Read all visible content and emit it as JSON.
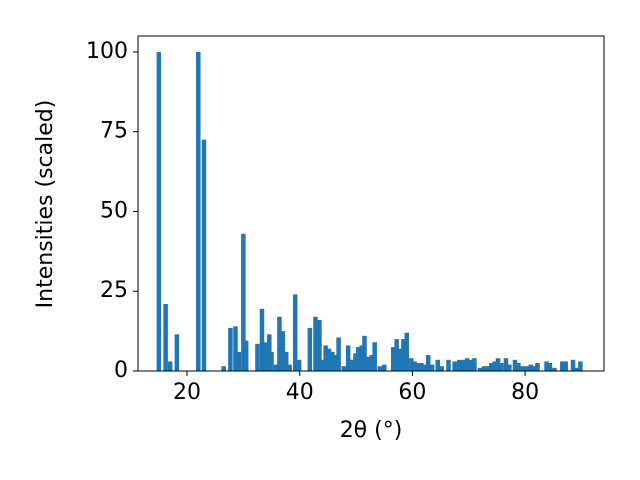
{
  "chart_data": {
    "type": "bar",
    "xlabel": "2θ (°)",
    "ylabel": "Intensities (scaled)",
    "color": "#1f77b4",
    "x": [
      15,
      16.2,
      17,
      18.2,
      22,
      23,
      26.5,
      27.7,
      28.6,
      29.2,
      30,
      30.5,
      32.5,
      33.3,
      34,
      34.6,
      35,
      35.8,
      36.4,
      37,
      37.6,
      38.2,
      39.2,
      39.9,
      41.8,
      42.8,
      43.5,
      44,
      44.6,
      45.2,
      45.8,
      46.3,
      46.9,
      47.8,
      48.6,
      49.3,
      49.9,
      50.4,
      51,
      51.5,
      52.2,
      52.8,
      53.3,
      54.2,
      55,
      56.6,
      57.2,
      57.8,
      58.4,
      59,
      59.8,
      60.4,
      61,
      61.6,
      62.2,
      62.8,
      63.5,
      64.5,
      65.2,
      66.4,
      67.5,
      68.3,
      69,
      69.7,
      70.4,
      71,
      72,
      72.7,
      73.3,
      74,
      74.6,
      75.2,
      75.8,
      76.6,
      77.2,
      78.2,
      78.8,
      79.5,
      80.2,
      81,
      81.6,
      82.2,
      83.8,
      84.4,
      85.2,
      86.6,
      87.2,
      88.5,
      89.2,
      89.8
    ],
    "values": [
      100,
      21,
      3,
      11.5,
      100,
      72.5,
      1.5,
      13.5,
      14,
      6,
      43,
      9.5,
      8.5,
      19.5,
      9,
      11.5,
      6,
      2,
      17,
      12.5,
      6,
      2,
      24,
      3.5,
      13.5,
      17,
      16,
      3.5,
      8,
      7,
      6,
      5,
      10.5,
      1.5,
      8,
      3.5,
      5.5,
      7.5,
      8,
      11,
      4.5,
      5,
      9,
      1.5,
      2,
      7.5,
      10,
      7,
      10,
      12,
      4,
      3,
      2.5,
      2.5,
      2,
      5,
      2,
      3.5,
      1.5,
      3.5,
      3,
      3.5,
      3.5,
      4,
      3.5,
      4,
      1,
      1.5,
      1.5,
      2.5,
      3,
      4,
      2.5,
      4,
      2,
      3.5,
      2.5,
      1.5,
      1.5,
      2,
      1.5,
      2.5,
      3,
      2.5,
      1,
      3,
      3,
      3.5,
      1,
      3
    ],
    "xlim": [
      11.3,
      94
    ],
    "ylim": [
      0,
      105
    ],
    "xticks": [
      20,
      40,
      60,
      80
    ],
    "yticks": [
      0,
      25,
      50,
      75,
      100
    ]
  }
}
